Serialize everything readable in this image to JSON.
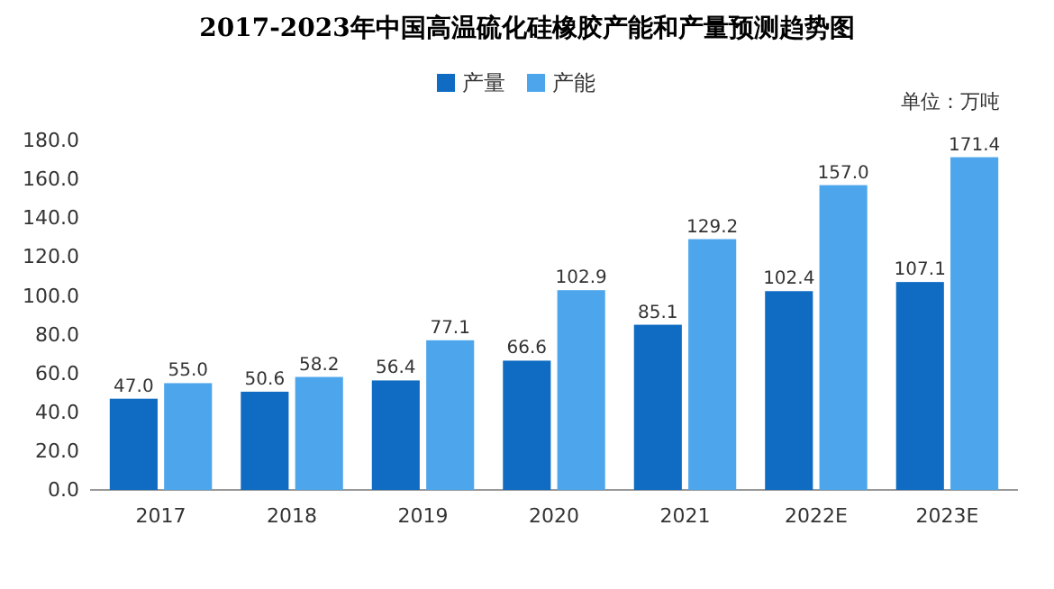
{
  "chart_data": {
    "type": "bar",
    "title": "2017-2023年中国高温硫化硅橡胶产能和产量预测趋势图",
    "annotations": [
      "单位：万吨"
    ],
    "categories": [
      "2017",
      "2018",
      "2019",
      "2020",
      "2021",
      "2022E",
      "2023E"
    ],
    "series": [
      {
        "name": "产量",
        "color": "#0f6cc2",
        "values": [
          47.0,
          50.6,
          56.4,
          66.6,
          85.1,
          102.4,
          107.1
        ],
        "value_labels": [
          "47.0",
          "50.6",
          "56.4",
          "66.6",
          "85.1",
          "102.4",
          "107.1"
        ]
      },
      {
        "name": "产能",
        "color": "#4da6ec",
        "values": [
          55.0,
          58.2,
          77.1,
          102.9,
          129.2,
          157.0,
          171.4
        ],
        "value_labels": [
          "55.0",
          "58.2",
          "77.1",
          "102.9",
          "129.2",
          "157.0",
          "171.4"
        ]
      }
    ],
    "ylim": [
      0,
      180
    ],
    "yticks": [
      {
        "value": 0,
        "label": "0.0"
      },
      {
        "value": 20,
        "label": "20.0"
      },
      {
        "value": 40,
        "label": "40.0"
      },
      {
        "value": 60,
        "label": "60.0"
      },
      {
        "value": 80,
        "label": "80.0"
      },
      {
        "value": 100,
        "label": "100.0"
      },
      {
        "value": 120,
        "label": "120.0"
      },
      {
        "value": 140,
        "label": "140.0"
      },
      {
        "value": 160,
        "label": "160.0"
      },
      {
        "value": 180,
        "label": "180.0"
      }
    ],
    "grid": false,
    "legend": "top"
  }
}
